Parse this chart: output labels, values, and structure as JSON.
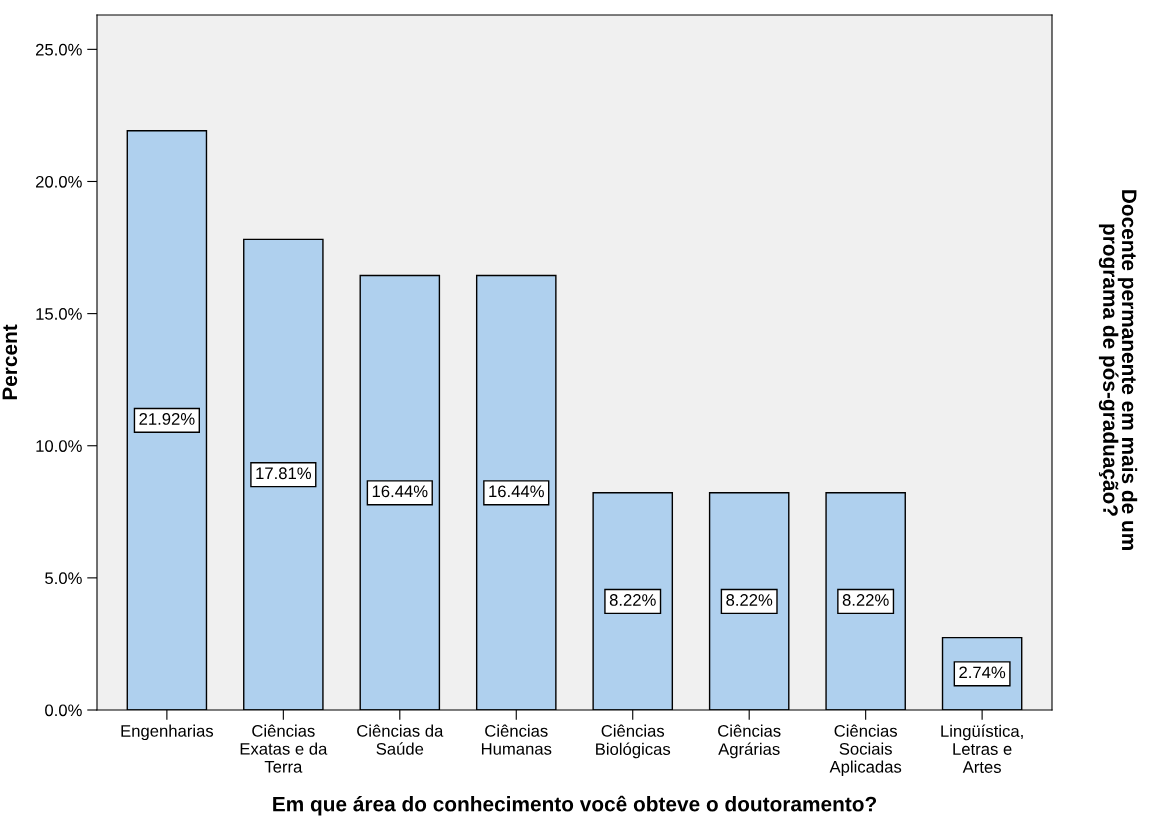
{
  "chart_data": {
    "type": "bar",
    "xlabel": "Em que área do conhecimento você obteve o doutoramento?",
    "ylabel": "Percent",
    "annotations": [
      "Docente permanente em mais de um\nprograma de pós-graduação?"
    ],
    "categories": [
      "Engenharias",
      "Ciências\nExatas e da\nTerra",
      "Ciências da\nSaúde",
      "Ciências\nHumanas",
      "Ciências\nBiológicas",
      "Ciências\nAgrárias",
      "Ciências\nSociais\nAplicadas",
      "Lingüística,\nLetras e\nArtes"
    ],
    "values": [
      21.92,
      17.81,
      16.44,
      16.44,
      8.22,
      8.22,
      8.22,
      2.74
    ],
    "value_labels": [
      "21.92%",
      "17.81%",
      "16.44%",
      "16.44%",
      "8.22%",
      "8.22%",
      "8.22%",
      "2.74%"
    ],
    "color": "#afd0ee",
    "ylim": [
      0,
      26.3
    ],
    "yticks": [
      {
        "value": 0,
        "label": "0.0%"
      },
      {
        "value": 5,
        "label": "5.0%"
      },
      {
        "value": 10,
        "label": "10.0%"
      },
      {
        "value": 15,
        "label": "15.0%"
      },
      {
        "value": 20,
        "label": "20.0%"
      },
      {
        "value": 25,
        "label": "25.0%"
      }
    ],
    "grid": false,
    "legend": false
  }
}
